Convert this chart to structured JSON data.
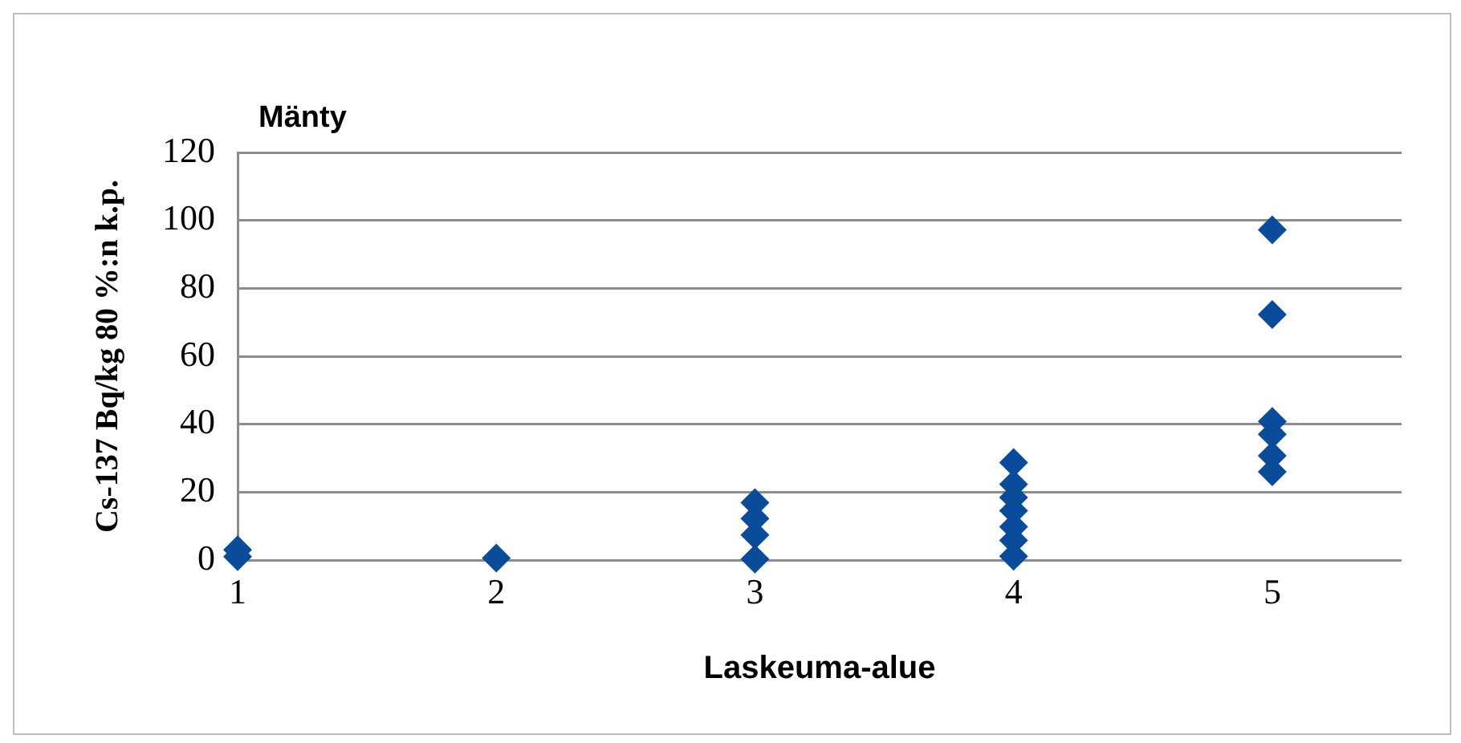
{
  "chart_data": {
    "type": "scatter",
    "title": "Mänty",
    "xlabel": "Laskeuma-alue",
    "ylabel": "Cs-137 Bq/kg 80 %:n k.p.",
    "series": [
      {
        "color": "#0b4c9a",
        "x": [
          1,
          1,
          2,
          3,
          3,
          3,
          3,
          4,
          4,
          4,
          4,
          4,
          4,
          4,
          5,
          5,
          5,
          5,
          5,
          5
        ],
        "values": [
          1,
          3,
          0.6,
          16.9,
          12.2,
          7.4,
          0.3,
          28.7,
          22.3,
          18.4,
          14.5,
          9.8,
          5.8,
          1.1,
          97.2,
          72.3,
          40.8,
          37,
          30.7,
          26
        ]
      }
    ],
    "xlim": [
      1,
      5.5
    ],
    "xticks": [
      1,
      2,
      3,
      4,
      5
    ],
    "ylim": [
      0,
      120
    ],
    "yticks": [
      0,
      20,
      40,
      60,
      80,
      100,
      120
    ],
    "grid": "y",
    "legend": false,
    "marker": "diamond"
  }
}
